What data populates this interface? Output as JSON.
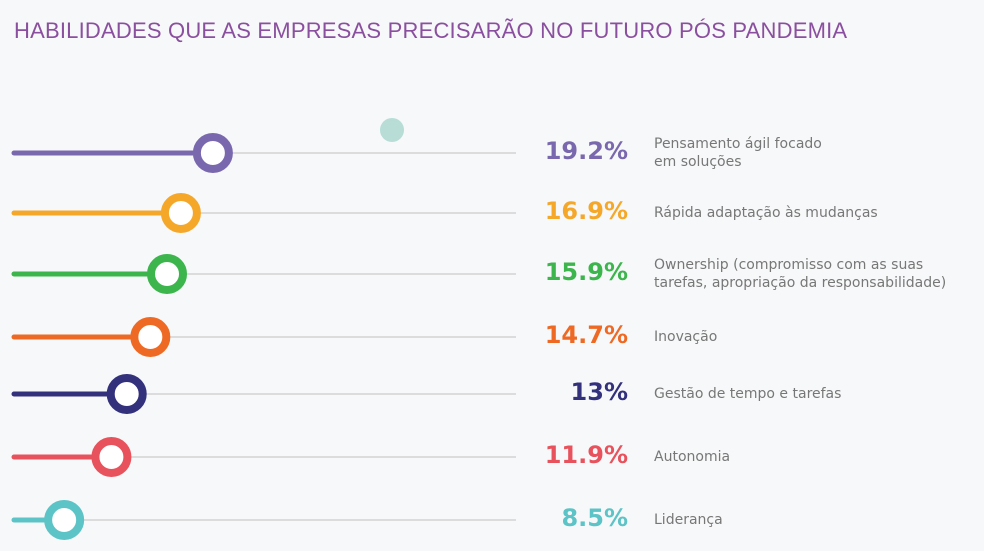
{
  "chart_data": {
    "type": "lollipop",
    "title": "HABILIDADES QUE AS EMPRESAS PRECISARÃO NO FUTURO PÓS PANDEMIA",
    "unit": "%",
    "items": [
      {
        "label": "Pensamento ágil focado\nem soluções",
        "value": 19.2,
        "display": "19.2%",
        "color": "#7a68ae"
      },
      {
        "label": "Rápida adaptação às mudanças",
        "value": 16.9,
        "display": "16.9%",
        "color": "#f5a72a"
      },
      {
        "label": "Ownership (compromisso com as suas\ntarefas, apropriação da responsabilidade)",
        "value": 15.9,
        "display": "15.9%",
        "color": "#3bb54c"
      },
      {
        "label": "Inovação",
        "value": 14.7,
        "display": "14.7%",
        "color": "#ee6a24"
      },
      {
        "label": "Gestão de tempo e tarefas",
        "value": 13,
        "display": "13%",
        "color": "#33307c"
      },
      {
        "label": "Autonomia",
        "value": 11.9,
        "display": "11.9%",
        "color": "#e8525c"
      },
      {
        "label": "Liderança",
        "value": 8.5,
        "display": "8.5%",
        "color": "#5cc3c6"
      }
    ]
  }
}
